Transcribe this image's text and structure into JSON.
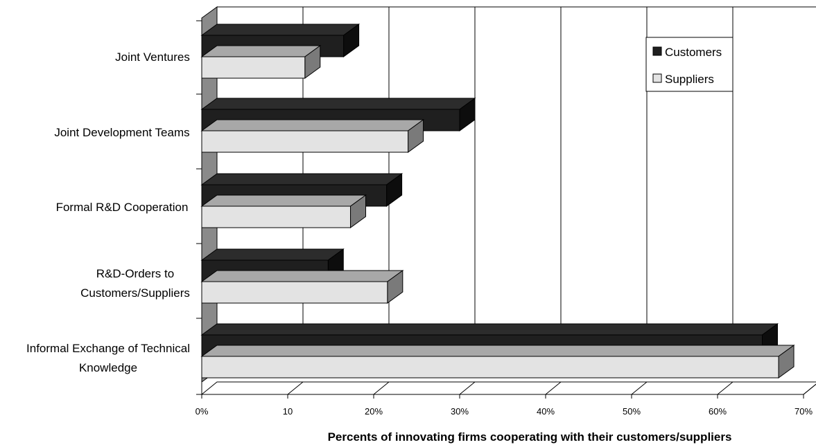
{
  "chart_data": {
    "type": "bar",
    "orientation": "horizontal",
    "three_d": true,
    "categories": [
      [
        "Joint Ventures"
      ],
      [
        "Joint Development Teams"
      ],
      [
        "Formal R&D Cooperation"
      ],
      [
        "R&D-Orders to",
        "Customers/Suppliers"
      ],
      [
        "Informal Exchange of Technical",
        "Knowledge"
      ]
    ],
    "series": [
      {
        "name": "Customers",
        "color": "#1f1f1f",
        "values": [
          16.5,
          30,
          21.5,
          14.7,
          65.2
        ]
      },
      {
        "name": "Suppliers",
        "color": "#e3e3e3",
        "values": [
          12,
          24,
          17.3,
          21.6,
          67.1
        ]
      }
    ],
    "xlim": [
      0,
      70
    ],
    "xticks": [
      "0%",
      "10",
      "20%",
      "30%",
      "40%",
      "50%",
      "60%",
      "70%"
    ],
    "xlabel": "Percents of innovating firms cooperating with their customers/suppliers",
    "ylabel": "",
    "grid": "vertical",
    "legend_position": "top-right"
  }
}
